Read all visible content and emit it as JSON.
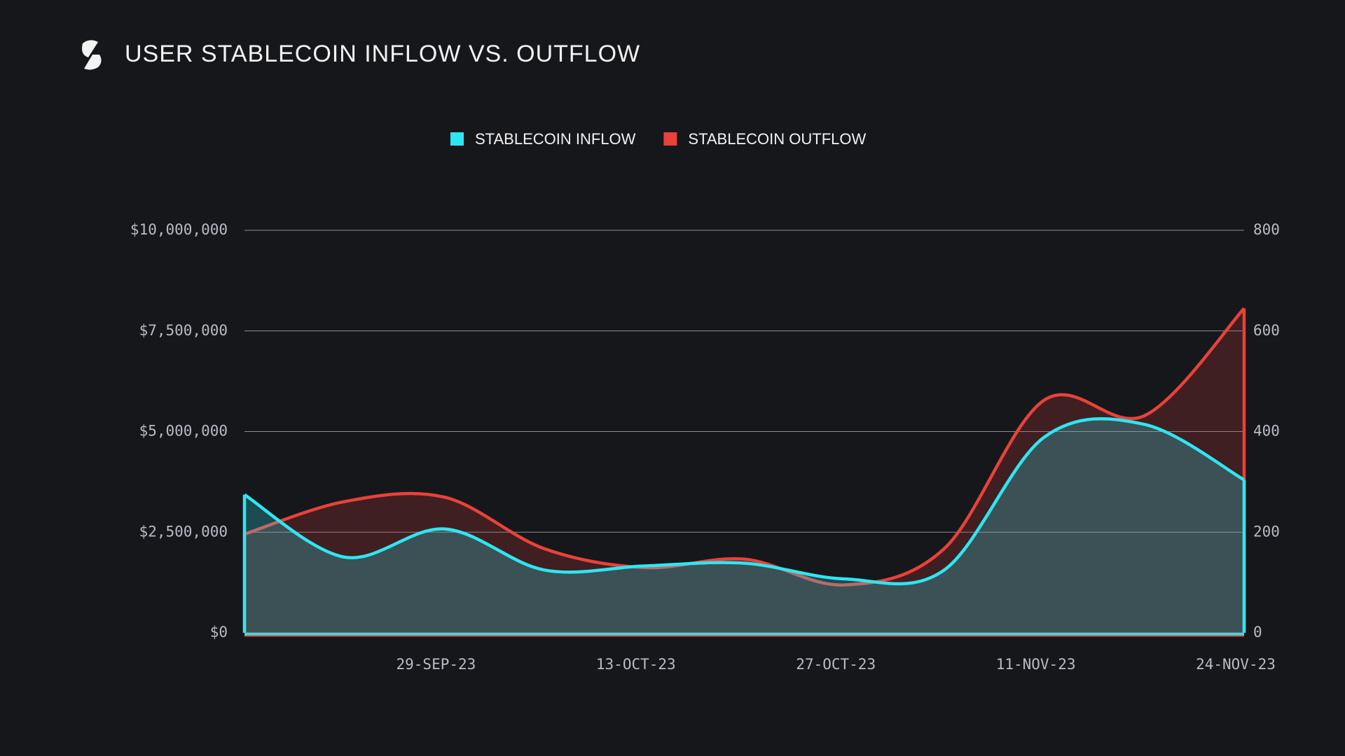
{
  "chart_data": {
    "type": "area",
    "title": "USER STABLECOIN INFLOW VS. OUTFLOW",
    "categories": [
      null,
      null,
      "29-SEP-23",
      null,
      "13-OCT-23",
      null,
      "27-OCT-23",
      null,
      "11-NOV-23",
      null,
      "24-NOV-23"
    ],
    "series": [
      {
        "name": "STABLECOIN INFLOW",
        "color": "#2ee6f2",
        "values": [
          3430000,
          1880000,
          2580000,
          1560000,
          1660000,
          1730000,
          1340000,
          1560000,
          4860000,
          5180000,
          3800000
        ]
      },
      {
        "name": "STABLECOIN OUTFLOW",
        "color": "#e8423a",
        "values": [
          2450000,
          3260000,
          3370000,
          2090000,
          1620000,
          1830000,
          1190000,
          2090000,
          5780000,
          5390000,
          8060000
        ]
      }
    ],
    "ylim": [
      0,
      10000000
    ],
    "yticks": [
      {
        "value": 0,
        "label": "$0"
      },
      {
        "value": 2500000,
        "label": "$2,500,000"
      },
      {
        "value": 5000000,
        "label": "$5,000,000"
      },
      {
        "value": 7500000,
        "label": "$7,500,000"
      },
      {
        "value": 10000000,
        "label": "$10,000,000"
      }
    ],
    "y2lim": [
      0,
      800
    ],
    "y2ticks": [
      0,
      200,
      400,
      600,
      800
    ],
    "grid": true
  }
}
